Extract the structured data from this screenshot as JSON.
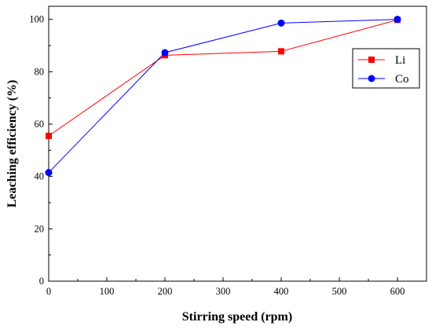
{
  "chart_data": {
    "type": "line",
    "xlabel": "Stirring speed (rpm)",
    "ylabel": "Leaching efficiency (%)",
    "xlim": [
      0,
      650
    ],
    "ylim": [
      0,
      105
    ],
    "xticks": [
      0,
      100,
      200,
      300,
      400,
      500,
      600
    ],
    "yticks": [
      0,
      20,
      40,
      60,
      80,
      100
    ],
    "grid": false,
    "legend_position": "top-right",
    "series": [
      {
        "name": "Li",
        "color": "#ff0000",
        "marker": "square",
        "x": [
          0,
          200,
          400,
          600
        ],
        "y": [
          55.5,
          86.3,
          87.8,
          99.8
        ]
      },
      {
        "name": "Co",
        "color": "#0000ff",
        "marker": "circle",
        "x": [
          0,
          200,
          400,
          600
        ],
        "y": [
          41.5,
          87.3,
          98.6,
          100
        ]
      }
    ]
  }
}
